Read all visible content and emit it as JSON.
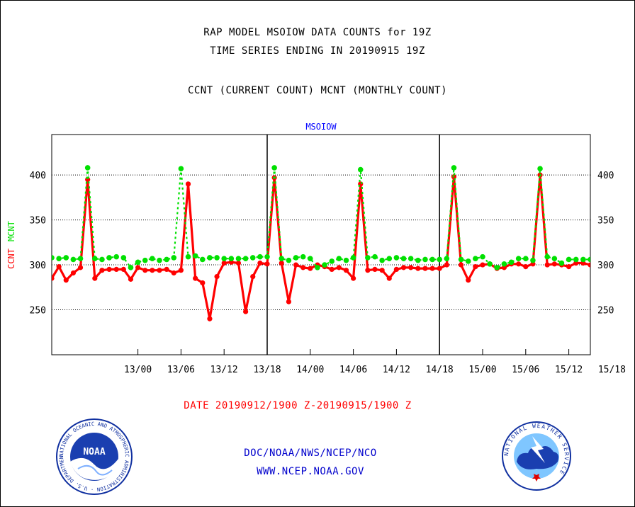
{
  "header": {
    "title1": "RAP MODEL MSOIOW DATA COUNTS for 19Z",
    "title2": "TIME SERIES ENDING IN 20190915 19Z",
    "subtitle": "CCNT (CURRENT COUNT) MCNT (MONTHLY COUNT)"
  },
  "footer": {
    "date_range": "DATE 20190912/1900 Z-20190915/1900 Z",
    "agency": "DOC/NOAA/NWS/NCEP/NCO",
    "website": "WWW.NCEP.NOAA.GOV"
  },
  "logos": {
    "noaa_text": "NOAA",
    "noaa_ring": "NATIONAL OCEANIC AND ATMOSPHERIC ADMINISTRATION · U.S. DEPARTMENT OF COMMERCE ·",
    "nws_ring": "NATIONAL WEATHER SERVICE"
  },
  "colors": {
    "ccnt": "#ff0000",
    "mcnt": "#00e000",
    "axis": "#000000",
    "plot_title": "#0000ff",
    "footer_date": "#ff0000",
    "footer_links": "#0000cc"
  },
  "chart_data": {
    "type": "line",
    "plot_title": "MSOIOW",
    "ylabel_left": "CCNT",
    "ylabel_right": "MCNT",
    "ylim": [
      200,
      445
    ],
    "xlim": [
      -7,
      68
    ],
    "yticks": [
      250,
      300,
      350,
      400
    ],
    "grid": "y dotted",
    "x_ticks": [
      {
        "x": 5,
        "label": "13/00"
      },
      {
        "x": 11,
        "label": "13/06"
      },
      {
        "x": 17,
        "label": "13/12"
      },
      {
        "x": 23,
        "label": "13/18"
      },
      {
        "x": 29,
        "label": "14/00"
      },
      {
        "x": 35,
        "label": "14/06"
      },
      {
        "x": 41,
        "label": "14/12"
      },
      {
        "x": 47,
        "label": "14/18"
      },
      {
        "x": 53,
        "label": "15/00"
      },
      {
        "x": 59,
        "label": "15/06"
      },
      {
        "x": 65,
        "label": "15/12"
      },
      {
        "x": 71,
        "label": "15/18"
      }
    ],
    "day_separators_x": [
      23,
      47,
      71
    ],
    "x": [
      -7,
      -6,
      -5,
      -4,
      -3,
      -2,
      -1,
      0,
      1,
      2,
      3,
      4,
      5,
      6,
      7,
      8,
      9,
      10,
      11,
      12,
      13,
      14,
      15,
      16,
      17,
      18,
      19,
      20,
      21,
      22,
      23,
      24,
      25,
      26,
      27,
      28,
      29,
      30,
      31,
      32,
      33,
      34,
      35,
      36,
      37,
      38,
      39,
      40,
      41,
      42,
      43,
      44,
      45,
      46,
      47,
      48,
      49,
      50,
      51,
      52,
      53,
      54,
      55,
      56,
      57,
      58,
      59,
      60,
      61,
      62,
      63,
      64,
      65,
      66,
      67,
      68
    ],
    "series": [
      {
        "name": "CCNT",
        "color": "#ff0000",
        "values": [
          285,
          298,
          283,
          291,
          297,
          395,
          285,
          294,
          295,
          295,
          295,
          284,
          297,
          294,
          294,
          294,
          295,
          291,
          294,
          390,
          285,
          280,
          240,
          287,
          302,
          303,
          302,
          248,
          287,
          302,
          301,
          397,
          302,
          259,
          300,
          297,
          296,
          300,
          298,
          295,
          297,
          294,
          285,
          390,
          294,
          295,
          294,
          285,
          295,
          297,
          297,
          296,
          296,
          296,
          296,
          300,
          398,
          300,
          283,
          298,
          300,
          301,
          296,
          297,
          301,
          301,
          298,
          301,
          400,
          300,
          301,
          300,
          298,
          302,
          302,
          300
        ]
      },
      {
        "name": "MCNT",
        "color": "#00e000",
        "values": [
          308,
          307,
          308,
          306,
          307,
          408,
          307,
          306,
          308,
          309,
          308,
          297,
          303,
          305,
          307,
          305,
          306,
          308,
          407,
          309,
          310,
          306,
          308,
          308,
          307,
          307,
          307,
          307,
          308,
          309,
          309,
          408,
          307,
          305,
          308,
          309,
          307,
          297,
          300,
          304,
          307,
          305,
          308,
          406,
          308,
          309,
          305,
          307,
          308,
          307,
          307,
          305,
          306,
          306,
          306,
          307,
          408,
          306,
          304,
          307,
          309,
          301,
          297,
          301,
          303,
          307,
          307,
          305,
          407,
          309,
          307,
          302,
          306,
          306,
          306,
          306
        ]
      }
    ]
  }
}
